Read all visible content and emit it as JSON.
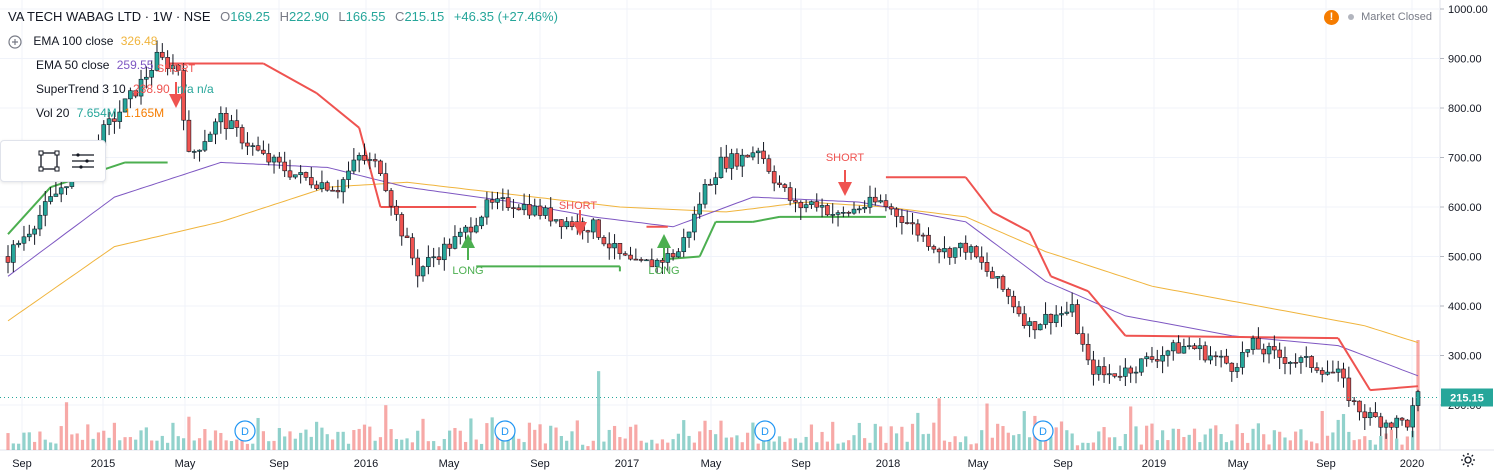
{
  "header": {
    "symbol": "VA TECH WABAG LTD · 1W · NSE",
    "open_label": "O",
    "open": "169.25",
    "high_label": "H",
    "high": "222.90",
    "low_label": "L",
    "low": "166.55",
    "close_label": "C",
    "close": "215.15",
    "change": "+46.35 (+27.46%)"
  },
  "status": {
    "warning": "!",
    "market": "Market Closed"
  },
  "indicators": [
    {
      "name": "EMA 100 close",
      "value": "326.48",
      "color": "#f0b43c"
    },
    {
      "name": "EMA 50 close",
      "value": "259.55",
      "color": "#7e57c2"
    },
    {
      "name": "SuperTrend 3 10",
      "value": "238.90",
      "extra": "n/a n/a",
      "color": "#ef5350",
      "extra_color": "#26a69a"
    },
    {
      "name": "Vol 20",
      "value": "7.654M",
      "extra": "1.165M",
      "color": "#26a69a",
      "extra_color": "#f57c00"
    }
  ],
  "icons": [
    "circle-icon",
    "rectangle-icon",
    "menu-lines-icon",
    "gear-icon"
  ],
  "chart_data": {
    "type": "candlestick",
    "title": "VA TECH WABAG LTD · 1W · NSE",
    "y_axis": {
      "ticks": [
        "1000.00",
        "900.00",
        "800.00",
        "700.00",
        "600.00",
        "500.00",
        "400.00",
        "300.00",
        "200.00"
      ],
      "min": 120,
      "max": 1010
    },
    "x_axis": {
      "ticks": [
        "Sep",
        "2015",
        "May",
        "Sep",
        "2016",
        "May",
        "Sep",
        "2017",
        "May",
        "Sep",
        "2018",
        "May",
        "Sep",
        "2019",
        "May",
        "Sep",
        "2020"
      ]
    },
    "last_price_label": "215.15",
    "signals": [
      {
        "type": "LONG",
        "date_index": 0
      },
      {
        "type": "LONG",
        "date_index": 1
      },
      {
        "type": "SHORT",
        "date_index": 2
      },
      {
        "type": "SHORT",
        "date_index": 3
      },
      {
        "type": "SHORT",
        "date_index": 4
      }
    ],
    "signal_labels": {
      "long": "LONG",
      "short": "SHORT"
    },
    "dividend_marker": "D",
    "dividend_count": 4,
    "price_path": [
      [
        0,
        500
      ],
      [
        10,
        640
      ],
      [
        25,
        850
      ],
      [
        28,
        900
      ],
      [
        32,
        880
      ],
      [
        34,
        700
      ],
      [
        40,
        780
      ],
      [
        48,
        700
      ],
      [
        55,
        660
      ],
      [
        62,
        640
      ],
      [
        66,
        700
      ],
      [
        70,
        680
      ],
      [
        73,
        580
      ],
      [
        77,
        470
      ],
      [
        80,
        500
      ],
      [
        85,
        540
      ],
      [
        90,
        600
      ],
      [
        95,
        610
      ],
      [
        100,
        590
      ],
      [
        105,
        570
      ],
      [
        110,
        560
      ],
      [
        115,
        500
      ],
      [
        118,
        480
      ],
      [
        122,
        490
      ],
      [
        126,
        510
      ],
      [
        129,
        580
      ],
      [
        131,
        640
      ],
      [
        134,
        690
      ],
      [
        138,
        700
      ],
      [
        141,
        720
      ],
      [
        144,
        660
      ],
      [
        148,
        600
      ],
      [
        152,
        610
      ],
      [
        156,
        580
      ],
      [
        160,
        600
      ],
      [
        164,
        610
      ],
      [
        168,
        580
      ],
      [
        172,
        540
      ],
      [
        176,
        510
      ],
      [
        180,
        520
      ],
      [
        184,
        470
      ],
      [
        188,
        420
      ],
      [
        192,
        360
      ],
      [
        196,
        380
      ],
      [
        200,
        390
      ],
      [
        203,
        280
      ],
      [
        206,
        260
      ],
      [
        210,
        270
      ],
      [
        214,
        290
      ],
      [
        218,
        310
      ],
      [
        222,
        320
      ],
      [
        226,
        300
      ],
      [
        230,
        280
      ],
      [
        234,
        320
      ],
      [
        238,
        300
      ],
      [
        242,
        290
      ],
      [
        246,
        280
      ],
      [
        250,
        260
      ],
      [
        253,
        200
      ],
      [
        256,
        175
      ],
      [
        260,
        165
      ],
      [
        263,
        165
      ],
      [
        265,
        215
      ]
    ],
    "ema100_path": [
      [
        0,
        370
      ],
      [
        20,
        520
      ],
      [
        40,
        570
      ],
      [
        60,
        640
      ],
      [
        75,
        650
      ],
      [
        95,
        625
      ],
      [
        115,
        600
      ],
      [
        135,
        590
      ],
      [
        150,
        610
      ],
      [
        165,
        600
      ],
      [
        180,
        580
      ],
      [
        195,
        510
      ],
      [
        215,
        440
      ],
      [
        235,
        400
      ],
      [
        255,
        360
      ],
      [
        265,
        326
      ]
    ],
    "ema50_path": [
      [
        0,
        460
      ],
      [
        20,
        620
      ],
      [
        40,
        690
      ],
      [
        60,
        680
      ],
      [
        75,
        640
      ],
      [
        95,
        610
      ],
      [
        110,
        580
      ],
      [
        125,
        560
      ],
      [
        140,
        620
      ],
      [
        160,
        610
      ],
      [
        180,
        570
      ],
      [
        195,
        450
      ],
      [
        210,
        380
      ],
      [
        230,
        340
      ],
      [
        250,
        320
      ],
      [
        265,
        259
      ]
    ],
    "supertrend_path": [
      [
        0,
        545,
        "up"
      ],
      [
        8,
        640,
        "up"
      ],
      [
        22,
        690,
        "up"
      ],
      [
        30,
        690,
        "up"
      ],
      [
        30,
        890,
        "down"
      ],
      [
        48,
        890,
        "down"
      ],
      [
        58,
        830,
        "down"
      ],
      [
        66,
        760,
        "down"
      ],
      [
        70,
        600,
        "down"
      ],
      [
        88,
        600,
        "down"
      ],
      [
        88,
        480,
        "up"
      ],
      [
        115,
        480,
        "up"
      ],
      [
        115,
        470,
        "up"
      ],
      [
        120,
        560,
        "down"
      ],
      [
        124,
        560,
        "down"
      ],
      [
        124,
        495,
        "up"
      ],
      [
        130,
        500,
        "up"
      ],
      [
        133,
        570,
        "up"
      ],
      [
        140,
        570,
        "up"
      ],
      [
        145,
        580,
        "up"
      ],
      [
        165,
        580,
        "up"
      ],
      [
        165,
        660,
        "down"
      ],
      [
        180,
        660,
        "down"
      ],
      [
        185,
        590,
        "down"
      ],
      [
        192,
        550,
        "down"
      ],
      [
        196,
        460,
        "down"
      ],
      [
        203,
        430,
        "down"
      ],
      [
        210,
        340,
        "down"
      ],
      [
        250,
        335,
        "down"
      ],
      [
        256,
        230,
        "down"
      ],
      [
        265,
        238,
        "down"
      ]
    ],
    "volume_path": [
      0.35,
      0.2,
      0.28,
      0.4,
      0.3,
      0.25,
      0.35,
      0.5,
      0.3,
      0.22,
      0.4,
      0.6,
      0.3,
      0.25,
      0.45,
      0.35,
      0.2,
      0.3,
      0.42,
      0.28
    ]
  }
}
